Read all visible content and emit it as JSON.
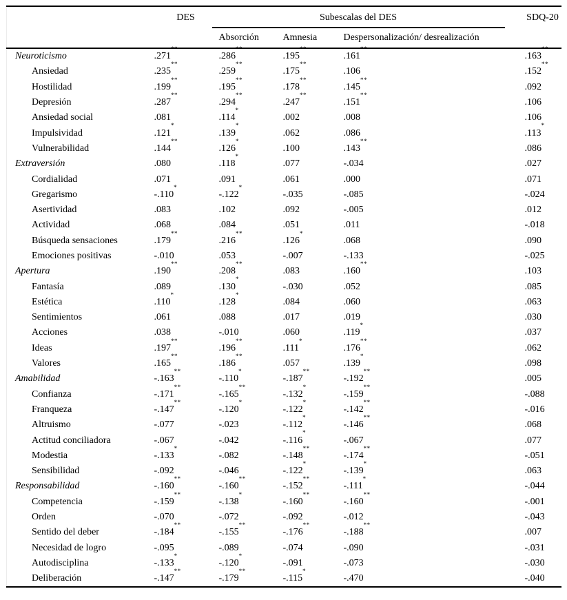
{
  "colors": {
    "text": "#000000",
    "background": "#ffffff",
    "rule": "#000000"
  },
  "table": {
    "header": {
      "des": "DES",
      "subescalas_group": "Subescalas del DES",
      "sdq": "SDQ-20",
      "subcolumns": [
        "Absorción",
        "Amnesia",
        "Despersonalización/ desrealización"
      ]
    },
    "rows": [
      {
        "label": "Neuroticismo",
        "level": "group",
        "cells": [
          ".271**",
          ".286**",
          ".195**",
          ".161**",
          ".163**"
        ]
      },
      {
        "label": "Ansiedad",
        "level": "facet",
        "cells": [
          ".235**",
          ".259**",
          ".175**",
          ".106",
          ".152**"
        ]
      },
      {
        "label": "Hostilidad",
        "level": "facet",
        "cells": [
          ".199**",
          ".195**",
          ".178**",
          ".145**",
          ".092"
        ]
      },
      {
        "label": "Depresión",
        "level": "facet",
        "cells": [
          ".287**",
          ".294**",
          ".247**",
          ".151**",
          ".106"
        ]
      },
      {
        "label": "Ansiedad social",
        "level": "facet",
        "cells": [
          ".081",
          ".114*",
          ".002",
          ".008",
          ".106"
        ]
      },
      {
        "label": "Impulsividad",
        "level": "facet",
        "cells": [
          ".121*",
          ".139*",
          ".062",
          ".086",
          ".113*"
        ]
      },
      {
        "label": "Vulnerabilidad",
        "level": "facet",
        "cells": [
          ".144**",
          ".126*",
          ".100",
          ".143**",
          ".086"
        ]
      },
      {
        "label": "Extraversión",
        "level": "group",
        "cells": [
          ".080",
          ".118*",
          ".077",
          "-.034",
          ".027"
        ]
      },
      {
        "label": "Cordialidad",
        "level": "facet",
        "cells": [
          ".071",
          ".091",
          ".061",
          ".000",
          ".071"
        ]
      },
      {
        "label": "Gregarismo",
        "level": "facet",
        "cells": [
          "-.110*",
          "-.122*",
          "-.035",
          "-.085",
          "-.024"
        ]
      },
      {
        "label": "Asertividad",
        "level": "facet",
        "cells": [
          ".083",
          ".102",
          ".092",
          "-.005",
          ".012"
        ]
      },
      {
        "label": "Actividad",
        "level": "facet",
        "cells": [
          ".068",
          ".084",
          ".051",
          ".011",
          "-.018"
        ]
      },
      {
        "label": "Búsqueda sensaciones",
        "level": "facet",
        "cells": [
          ".179**",
          ".216**",
          ".126*",
          ".068",
          ".090"
        ]
      },
      {
        "label": "Emociones positivas",
        "level": "facet",
        "cells": [
          "-.010",
          ".053",
          "-.007",
          "-.133",
          "-.025"
        ]
      },
      {
        "label": "Apertura",
        "level": "group",
        "cells": [
          ".190**",
          ".208**",
          ".083",
          ".160**",
          ".103"
        ]
      },
      {
        "label": "Fantasía",
        "level": "facet",
        "cells": [
          ".089",
          ".130*",
          "-.030",
          ".052",
          ".085"
        ]
      },
      {
        "label": "Estética",
        "level": "facet",
        "cells": [
          ".110*",
          ".128*",
          ".084",
          ".060",
          ".063"
        ]
      },
      {
        "label": "Sentimientos",
        "level": "facet",
        "cells": [
          ".061",
          ".088",
          ".017",
          ".019",
          ".030"
        ]
      },
      {
        "label": "Acciones",
        "level": "facet",
        "cells": [
          ".038",
          "-.010",
          ".060",
          ".119*",
          ".037"
        ]
      },
      {
        "label": "Ideas",
        "level": "facet",
        "cells": [
          ".197**",
          ".196**",
          ".111*",
          ".176**",
          ".062"
        ]
      },
      {
        "label": "Valores",
        "level": "facet",
        "cells": [
          ".165**",
          ".186**",
          ".057",
          ".139*",
          ".098"
        ]
      },
      {
        "label": "Amabilidad",
        "level": "group",
        "cells": [
          "-.163**",
          "-.110*",
          "-.187**",
          "-.192**",
          ".005"
        ]
      },
      {
        "label": "Confianza",
        "level": "facet",
        "cells": [
          "-.171**",
          "-.165**",
          "-.132*",
          "-.159**",
          "-.088"
        ]
      },
      {
        "label": "Franqueza",
        "level": "facet",
        "cells": [
          "-.147**",
          "-.120*",
          "-.122*",
          "-.142**",
          "-.016"
        ]
      },
      {
        "label": "Altruismo",
        "level": "facet",
        "cells": [
          "-.077",
          "-.023",
          "-.112*",
          "-.146**",
          ".068"
        ]
      },
      {
        "label": "Actitud conciliadora",
        "level": "facet",
        "cells": [
          "-.067",
          "-.042",
          "-.116*",
          "-.067",
          ".077"
        ]
      },
      {
        "label": "Modestia",
        "level": "facet",
        "cells": [
          "-.133*",
          "-.082",
          "-.148**",
          "-.174**",
          "-.051"
        ]
      },
      {
        "label": "Sensibilidad",
        "level": "facet",
        "cells": [
          "-.092",
          "-.046",
          "-.122*",
          "-.139*",
          ".063"
        ]
      },
      {
        "label": "Responsabilidad",
        "level": "group",
        "cells": [
          "-.160**",
          "-.160**",
          "-.152**",
          "-.111*",
          "-.044"
        ]
      },
      {
        "label": "Competencia",
        "level": "facet",
        "cells": [
          "-.159**",
          "-.138*",
          "-.160**",
          "-.160**",
          "-.001"
        ]
      },
      {
        "label": "Orden",
        "level": "facet",
        "cells": [
          "-.070",
          "-.072",
          "-.092",
          "-.012",
          "-.043"
        ]
      },
      {
        "label": "Sentido del deber",
        "level": "facet",
        "cells": [
          "-.184**",
          "-.155**",
          "-.176**",
          "-.188**",
          ".007"
        ]
      },
      {
        "label": "Necesidad de logro",
        "level": "facet",
        "cells": [
          "-.095",
          "-.089",
          "-.074",
          "-.090",
          "-.031"
        ]
      },
      {
        "label": "Autodisciplina",
        "level": "facet",
        "cells": [
          "-.133*",
          "-.120*",
          "-.091",
          "-.073",
          "-.030"
        ]
      },
      {
        "label": "Deliberación",
        "level": "facet",
        "cells": [
          "-.147**",
          "-.179**",
          "-.115*",
          "-.470",
          "-.040"
        ]
      }
    ]
  }
}
